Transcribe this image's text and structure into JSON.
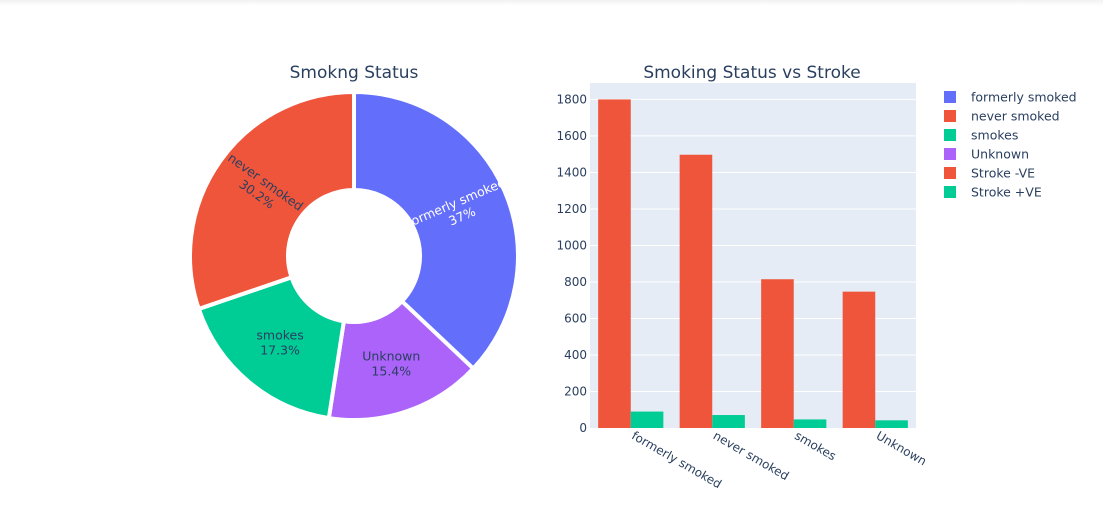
{
  "chart_data": [
    {
      "type": "pie",
      "title": "Smokng Status",
      "hole": true,
      "slices": [
        {
          "label": "formerly smoked",
          "percent_text": "37%",
          "value": 37.0,
          "color": "#636efa",
          "text_color": "#ffffff"
        },
        {
          "label": "Unknown",
          "percent_text": "15.4%",
          "value": 15.4,
          "color": "#ab63fa",
          "text_color": "#2a3f5f"
        },
        {
          "label": "smokes",
          "percent_text": "17.3%",
          "value": 17.3,
          "color": "#00cc96",
          "text_color": "#2a3f5f"
        },
        {
          "label": "never smoked",
          "percent_text": "30.2%",
          "value": 30.2,
          "color": "#ef553b",
          "text_color": "#2a3f5f"
        }
      ]
    },
    {
      "type": "bar",
      "title": "Smoking Status vs Stroke",
      "categories": [
        "formerly smoked",
        "never smoked",
        "smokes",
        "Unknown"
      ],
      "series": [
        {
          "name": "Stroke -VE",
          "color": "#ef553b",
          "values": [
            1800,
            1497,
            815,
            747
          ]
        },
        {
          "name": "Stroke +VE",
          "color": "#00cc96",
          "values": [
            90,
            71,
            47,
            42
          ]
        }
      ],
      "ylim": [
        0,
        1890
      ],
      "yticks": [
        0,
        200,
        400,
        600,
        800,
        1000,
        1200,
        1400,
        1600,
        1800
      ],
      "grid": true,
      "xlabel": "",
      "ylabel": ""
    }
  ],
  "legend": {
    "placement": "right",
    "items": [
      {
        "label": "formerly smoked",
        "color": "#636efa"
      },
      {
        "label": "never smoked",
        "color": "#ef553b"
      },
      {
        "label": "smokes",
        "color": "#00cc96"
      },
      {
        "label": "Unknown",
        "color": "#ab63fa"
      },
      {
        "label": "Stroke -VE",
        "color": "#ef553b"
      },
      {
        "label": "Stroke +VE",
        "color": "#00cc96"
      }
    ]
  },
  "colors": {
    "plot_background": "#e5ecf6",
    "grid": "#ffffff",
    "text": "#2a3f5f"
  }
}
